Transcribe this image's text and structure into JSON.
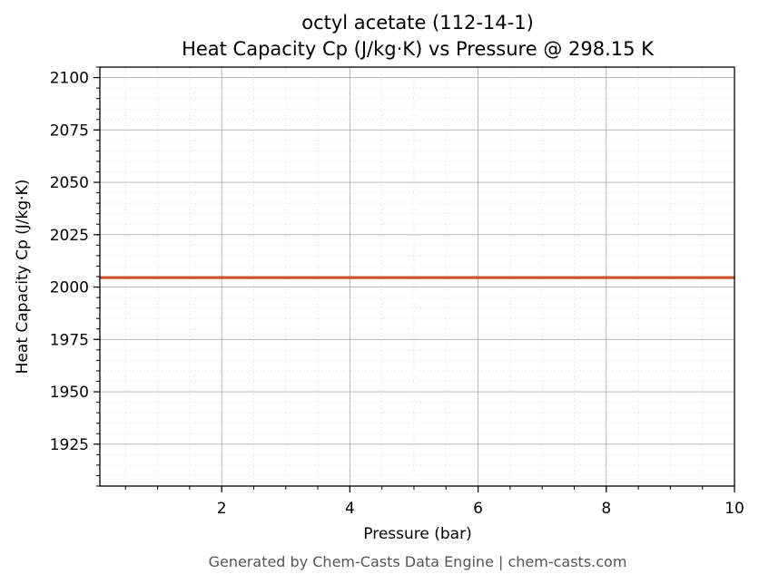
{
  "chart_data": {
    "type": "line",
    "title": "octyl acetate (112-14-1)",
    "subtitle": "Heat Capacity Cp (J/kg·K) vs Pressure @ 298.15 K",
    "xlabel": "Pressure (bar)",
    "ylabel": "Heat Capacity Cp (J/kg·K)",
    "xlim": [
      0.1,
      10
    ],
    "ylim": [
      1905,
      2105
    ],
    "x_ticks": [
      2,
      4,
      6,
      8,
      10
    ],
    "y_ticks": [
      1925,
      1950,
      1975,
      2000,
      2025,
      2050,
      2075,
      2100
    ],
    "grid": true,
    "series": [
      {
        "color": "#c8552b",
        "x": [
          0.1,
          1,
          2,
          3,
          4,
          5,
          6,
          7,
          8,
          9,
          10
        ],
        "values": [
          2004.5,
          2004.5,
          2004.5,
          2004.5,
          2004.5,
          2004.5,
          2004.5,
          2004.5,
          2004.5,
          2004.5,
          2004.5
        ]
      }
    ]
  },
  "footer": "Generated by Chem-Casts Data Engine | chem-casts.com"
}
